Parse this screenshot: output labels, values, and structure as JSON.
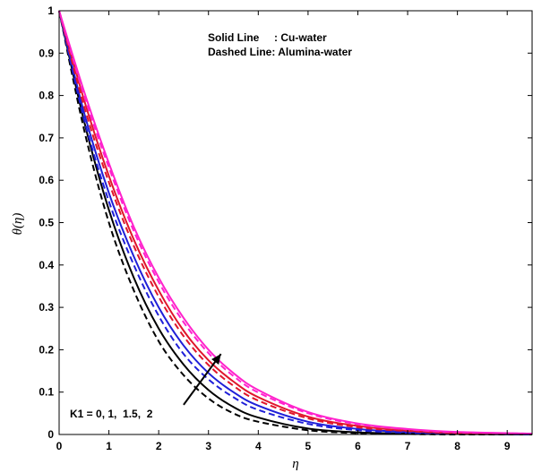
{
  "chart_data": {
    "type": "line",
    "title": "",
    "xlabel": "η",
    "ylabel": "θ(η)",
    "xlim": [
      0,
      9.5
    ],
    "ylim": [
      0,
      1
    ],
    "xticks": [
      0,
      1,
      2,
      3,
      4,
      5,
      6,
      7,
      8,
      9
    ],
    "yticks": [
      0,
      0.1,
      0.2,
      0.3,
      0.4,
      0.5,
      0.6,
      0.7,
      0.8,
      0.9,
      1
    ],
    "grid": false,
    "legend": {
      "placement": "top-center",
      "solid_text": "Solid Line     : Cu-water",
      "dashed_text": "Dashed Line: Alumina-water"
    },
    "annotation": {
      "text": "K1 = 0, 1,  1.5,  2",
      "arrow_from": [
        2.5,
        0.07
      ],
      "arrow_to": [
        3.25,
        0.19
      ]
    },
    "series": [
      {
        "style": "solid",
        "color": "#000000",
        "x": [
          0,
          0.5,
          1,
          1.5,
          2,
          2.5,
          3,
          3.5,
          4,
          5,
          6,
          7,
          8,
          9.5
        ],
        "y": [
          1,
          0.74,
          0.53,
          0.37,
          0.25,
          0.165,
          0.105,
          0.065,
          0.04,
          0.014,
          0.005,
          0.002,
          0.001,
          0
        ]
      },
      {
        "style": "dashed",
        "color": "#000000",
        "x": [
          0,
          0.5,
          1,
          1.5,
          2,
          2.5,
          3,
          3.5,
          4,
          5,
          6,
          7,
          8,
          9.5
        ],
        "y": [
          1,
          0.72,
          0.5,
          0.34,
          0.22,
          0.14,
          0.085,
          0.05,
          0.03,
          0.01,
          0.003,
          0.001,
          0,
          0
        ]
      },
      {
        "style": "solid",
        "color": "#1f1fd8",
        "x": [
          0,
          0.5,
          1,
          1.5,
          2,
          2.5,
          3,
          3.5,
          4,
          5,
          6,
          7,
          8,
          9.5
        ],
        "y": [
          1,
          0.76,
          0.57,
          0.42,
          0.3,
          0.21,
          0.145,
          0.1,
          0.068,
          0.03,
          0.013,
          0.006,
          0.003,
          0.001
        ]
      },
      {
        "style": "dashed",
        "color": "#1f1fd8",
        "x": [
          0,
          0.5,
          1,
          1.5,
          2,
          2.5,
          3,
          3.5,
          4,
          5,
          6,
          7,
          8,
          9.5
        ],
        "y": [
          1,
          0.745,
          0.55,
          0.4,
          0.28,
          0.19,
          0.13,
          0.088,
          0.058,
          0.025,
          0.01,
          0.004,
          0.002,
          0
        ]
      },
      {
        "style": "solid",
        "color": "#e0162b",
        "x": [
          0,
          0.5,
          1,
          1.5,
          2,
          2.5,
          3,
          3.5,
          4,
          5,
          6,
          7,
          8,
          9.5
        ],
        "y": [
          1,
          0.79,
          0.61,
          0.46,
          0.34,
          0.245,
          0.175,
          0.125,
          0.088,
          0.042,
          0.02,
          0.009,
          0.004,
          0.001
        ]
      },
      {
        "style": "dashed",
        "color": "#e0162b",
        "x": [
          0,
          0.5,
          1,
          1.5,
          2,
          2.5,
          3,
          3.5,
          4,
          5,
          6,
          7,
          8,
          9.5
        ],
        "y": [
          1,
          0.775,
          0.595,
          0.445,
          0.325,
          0.232,
          0.164,
          0.115,
          0.08,
          0.038,
          0.017,
          0.008,
          0.003,
          0.001
        ]
      },
      {
        "style": "solid",
        "color": "#ff22cc",
        "x": [
          0,
          0.5,
          1,
          1.5,
          2,
          2.5,
          3,
          3.5,
          4,
          5,
          6,
          7,
          8,
          9.5
        ],
        "y": [
          1,
          0.81,
          0.64,
          0.49,
          0.37,
          0.275,
          0.2,
          0.145,
          0.105,
          0.053,
          0.026,
          0.013,
          0.006,
          0.002
        ]
      },
      {
        "style": "dashed",
        "color": "#ff22cc",
        "x": [
          0,
          0.5,
          1,
          1.5,
          2,
          2.5,
          3,
          3.5,
          4,
          5,
          6,
          7,
          8,
          9.5
        ],
        "y": [
          1,
          0.8,
          0.63,
          0.48,
          0.36,
          0.265,
          0.192,
          0.138,
          0.099,
          0.05,
          0.024,
          0.012,
          0.005,
          0.002
        ]
      }
    ]
  }
}
